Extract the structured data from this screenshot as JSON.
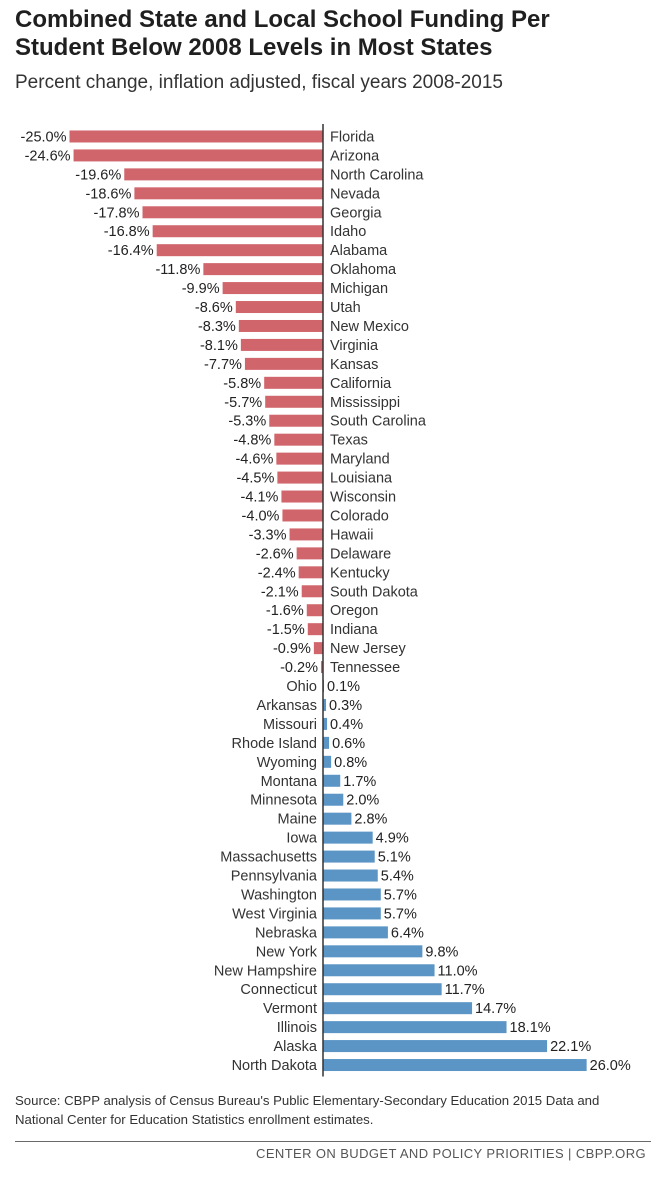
{
  "header": {
    "title": "Combined State and Local School Funding Per Student Below 2008 Levels in Most States",
    "subtitle": "Percent change, inflation adjusted, fiscal years 2008-2015"
  },
  "footer": {
    "source": "Source: CBPP analysis of Census Bureau's Public Elementary-Secondary Education 2015 Data and National Center for Education Statistics enrollment estimates.",
    "org": "CENTER ON BUDGET AND POLICY PRIORITIES | CBPP.ORG"
  },
  "colors": {
    "negative": "#d0666c",
    "positive": "#5b95c5",
    "axis": "#333333"
  },
  "chart_data": {
    "type": "bar",
    "orientation": "horizontal",
    "title": "Combined State and Local School Funding Per Student Below 2008 Levels in Most States",
    "subtitle": "Percent change, inflation adjusted, fiscal years 2008-2015",
    "unit": "%",
    "xlim": [
      -26,
      27
    ],
    "categories": [
      "Florida",
      "Arizona",
      "North Carolina",
      "Nevada",
      "Georgia",
      "Idaho",
      "Alabama",
      "Oklahoma",
      "Michigan",
      "Utah",
      "New Mexico",
      "Virginia",
      "Kansas",
      "California",
      "Mississippi",
      "South Carolina",
      "Texas",
      "Maryland",
      "Louisiana",
      "Wisconsin",
      "Colorado",
      "Hawaii",
      "Delaware",
      "Kentucky",
      "South Dakota",
      "Oregon",
      "Indiana",
      "New Jersey",
      "Tennessee",
      "Ohio",
      "Arkansas",
      "Missouri",
      "Rhode Island",
      "Wyoming",
      "Montana",
      "Minnesota",
      "Maine",
      "Iowa",
      "Massachusetts",
      "Pennsylvania",
      "Washington",
      "West Virginia",
      "Nebraska",
      "New York",
      "New Hampshire",
      "Connecticut",
      "Vermont",
      "Illinois",
      "Alaska",
      "North Dakota"
    ],
    "values": [
      -25.0,
      -24.6,
      -19.6,
      -18.6,
      -17.8,
      -16.8,
      -16.4,
      -11.8,
      -9.9,
      -8.6,
      -8.3,
      -8.1,
      -7.7,
      -5.8,
      -5.7,
      -5.3,
      -4.8,
      -4.6,
      -4.5,
      -4.1,
      -4.0,
      -3.3,
      -2.6,
      -2.4,
      -2.1,
      -1.6,
      -1.5,
      -0.9,
      -0.2,
      0.1,
      0.3,
      0.4,
      0.6,
      0.8,
      1.7,
      2.0,
      2.8,
      4.9,
      5.1,
      5.4,
      5.7,
      5.7,
      6.4,
      9.8,
      11.0,
      11.7,
      14.7,
      18.1,
      22.1,
      26.0
    ],
    "labels": [
      "-25.0%",
      "-24.6%",
      "-19.6%",
      "-18.6%",
      "-17.8%",
      "-16.8%",
      "-16.4%",
      "-11.8%",
      "-9.9%",
      "-8.6%",
      "-8.3%",
      "-8.1%",
      "-7.7%",
      "-5.8%",
      "-5.7%",
      "-5.3%",
      "-4.8%",
      "-4.6%",
      "-4.5%",
      "-4.1%",
      "-4.0%",
      "-3.3%",
      "-2.6%",
      "-2.4%",
      "-2.1%",
      "-1.6%",
      "-1.5%",
      "-0.9%",
      "-0.2%",
      "0.1%",
      "0.3%",
      "0.4%",
      "0.6%",
      "0.8%",
      "1.7%",
      "2.0%",
      "2.8%",
      "4.9%",
      "5.1%",
      "5.4%",
      "5.7%",
      "5.7%",
      "6.4%",
      "9.8%",
      "11.0%",
      "11.7%",
      "14.7%",
      "18.1%",
      "22.1%",
      "26.0%"
    ]
  }
}
